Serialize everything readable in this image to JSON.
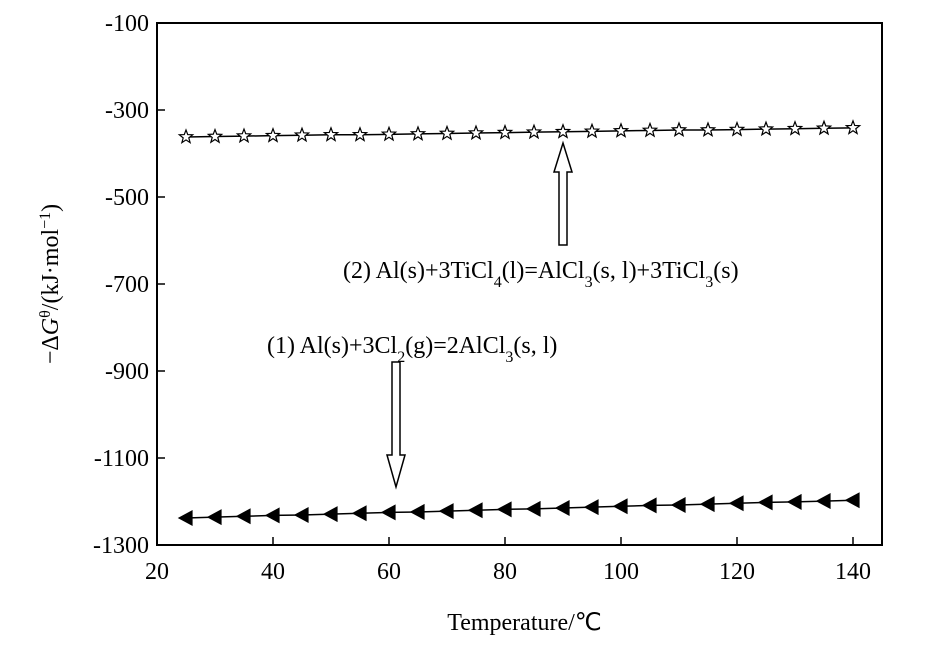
{
  "chart_data": {
    "type": "line",
    "x_label": "Temperature/℃",
    "y_label": [
      {
        "text": "−Δ"
      },
      {
        "text": "G",
        "style": "italic"
      },
      {
        "text": "θ",
        "shift": "super"
      },
      {
        "text": "/(kJ·mol"
      },
      {
        "text": "−1",
        "shift": "super"
      },
      {
        "text": ")"
      }
    ],
    "x": [
      25,
      30,
      35,
      40,
      45,
      50,
      55,
      60,
      65,
      70,
      75,
      80,
      85,
      90,
      95,
      100,
      105,
      110,
      115,
      120,
      125,
      130,
      135,
      140
    ],
    "series": [
      {
        "color": "#000000",
        "marker": "triangle-left",
        "values": [
          -1238,
          -1236,
          -1234,
          -1232,
          -1231,
          -1229,
          -1227,
          -1225,
          -1224,
          -1222,
          -1220,
          -1218,
          -1217,
          -1215,
          -1213,
          -1211,
          -1209,
          -1208,
          -1206,
          -1204,
          -1202,
          -1201,
          -1199,
          -1197
        ]
      },
      {
        "color": "#000000",
        "marker": "star",
        "values": [
          -362,
          -361,
          -360,
          -359,
          -358,
          -357,
          -357,
          -356,
          -355,
          -354,
          -353,
          -352,
          -351,
          -350,
          -349,
          -348,
          -347,
          -346,
          -346,
          -345,
          -344,
          -343,
          -342,
          -341
        ]
      }
    ],
    "annotations": [
      [
        {
          "text": "(1) Al(s)+3Cl"
        },
        {
          "text": "2",
          "shift": "sub"
        },
        {
          "text": "(g)=2AlCl"
        },
        {
          "text": "3",
          "shift": "sub"
        },
        {
          "text": "(s, l)"
        }
      ],
      [
        {
          "text": "(2) Al(s)+3TiCl"
        },
        {
          "text": "4",
          "shift": "sub"
        },
        {
          "text": "(l)=AlCl"
        },
        {
          "text": "3",
          "shift": "sub"
        },
        {
          "text": "(s, l)+3TiCl"
        },
        {
          "text": "3",
          "shift": "sub"
        },
        {
          "text": "(s)"
        }
      ]
    ],
    "xlim": [
      20,
      145
    ],
    "xticks": [
      20,
      40,
      60,
      80,
      100,
      120,
      140
    ],
    "ylim": [
      -1300,
      -100
    ],
    "yticks": [
      -1300,
      -1100,
      -900,
      -700,
      -500,
      -300,
      -100
    ]
  }
}
